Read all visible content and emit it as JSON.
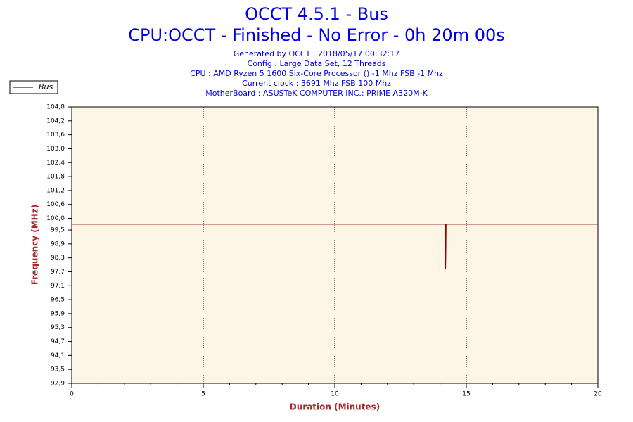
{
  "chart_data": {
    "type": "line",
    "title": "OCCT 4.5.1 - Bus",
    "subtitle": "CPU:OCCT - Finished - No Error - 0h 20m 00s",
    "info": [
      "Generated by OCCT : 2018/05/17 00:32:17",
      "Config : Large Data Set, 12 Threads",
      "CPU : AMD Ryzen 5 1600 Six-Core Processor () -1 Mhz FSB -1 Mhz",
      "Current clock : 3691 Mhz FSB 100 Mhz",
      "MotherBoard : ASUSTeK COMPUTER INC.: PRIME A320M-K"
    ],
    "x_label": "Duration (Minutes)",
    "y_label": "Frequency (MHz)",
    "x": [
      0,
      14.2,
      14.21,
      14.22,
      14.23,
      20
    ],
    "series": [
      {
        "name": "Bus",
        "color": "#8b0000",
        "values": [
          99.75,
          99.75,
          97.8,
          98.5,
          99.75,
          99.75
        ]
      }
    ],
    "xlim": [
      0,
      20
    ],
    "xticks": [
      0,
      5,
      10,
      15,
      20
    ],
    "ylim": [
      92.9,
      104.8
    ],
    "yticks": [
      {
        "value": 104.8,
        "label": "104,8"
      },
      {
        "value": 104.2,
        "label": "104,2"
      },
      {
        "value": 103.6,
        "label": "103,6"
      },
      {
        "value": 103.0,
        "label": "103,0"
      },
      {
        "value": 102.4,
        "label": "102,4"
      },
      {
        "value": 101.8,
        "label": "101,8"
      },
      {
        "value": 101.2,
        "label": "101,2"
      },
      {
        "value": 100.6,
        "label": "100,6"
      },
      {
        "value": 100.0,
        "label": "100,0"
      },
      {
        "value": 99.5,
        "label": "99,5"
      },
      {
        "value": 98.9,
        "label": "98,9"
      },
      {
        "value": 98.3,
        "label": "98,3"
      },
      {
        "value": 97.7,
        "label": "97,7"
      },
      {
        "value": 97.1,
        "label": "97,1"
      },
      {
        "value": 96.5,
        "label": "96,5"
      },
      {
        "value": 95.9,
        "label": "95,9"
      },
      {
        "value": 95.3,
        "label": "95,3"
      },
      {
        "value": 94.7,
        "label": "94,7"
      },
      {
        "value": 94.1,
        "label": "94,1"
      },
      {
        "value": 93.5,
        "label": "93,5"
      },
      {
        "value": 92.9,
        "label": "92,9"
      }
    ],
    "grid": true,
    "legend": "top-left"
  }
}
